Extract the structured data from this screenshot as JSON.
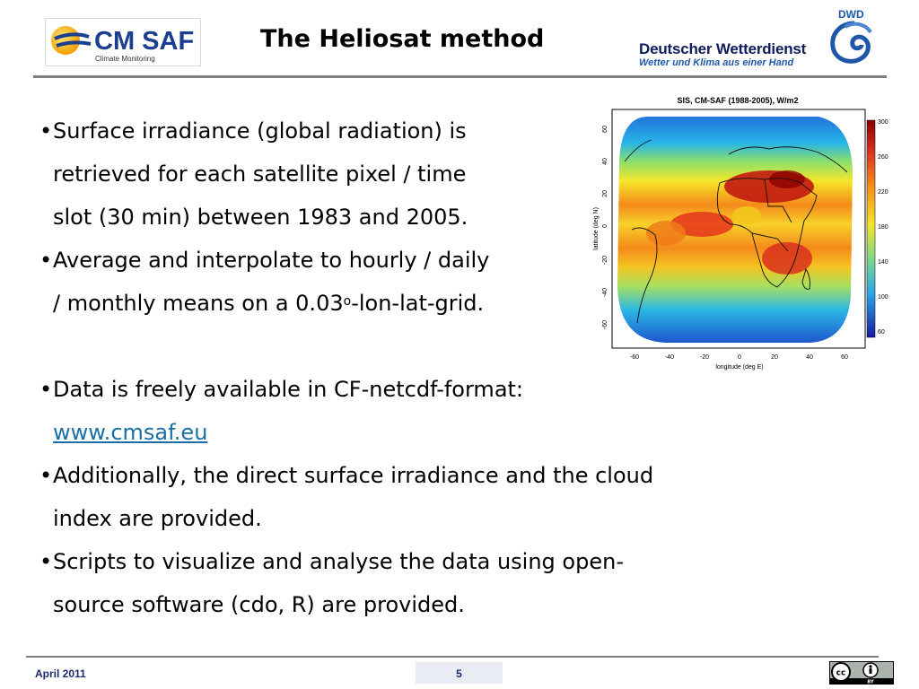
{
  "header": {
    "title": "The Heliosat method",
    "cmsaf_logo": {
      "name": "CM SAF",
      "tagline": "Climate Monitoring"
    },
    "dwd": {
      "short": "DWD",
      "name": "Deutscher Wetterdienst",
      "slogan": "Wetter und Klima aus einer Hand"
    }
  },
  "bullets": {
    "b1": {
      "l1": "Surface irradiance (global radiation) is",
      "l2": "retrieved for each satellite pixel / time",
      "l3": "slot (30 min) between 1983 and 2005."
    },
    "b2": {
      "l1": "Average and interpolate to hourly / daily",
      "l2a": "/ monthly means on a 0.03",
      "l2sup": "o",
      "l2b": "-lon-lat-grid."
    },
    "b3": {
      "l1": "Data is freely available in CF-netcdf-format:",
      "link": "www.cmsaf.eu"
    },
    "b4": {
      "l1": "Additionally, the direct surface irradiance and the cloud",
      "l2": "index are provided."
    },
    "b5": {
      "l1": "Scripts to visualize and analyse the data using open-",
      "l2": "source software (cdo, R) are provided."
    },
    "bullet_char": "•"
  },
  "map": {
    "title": "SIS, CM-SAF (1988-2005), W/m2",
    "xlabel": "longitude (deg E)",
    "ylabel": "latitude (deg N)",
    "xticks": [
      "-60",
      "-40",
      "-20",
      "0",
      "20",
      "40",
      "60"
    ],
    "yticks": [
      "60",
      "40",
      "20",
      "0",
      "-20",
      "-40",
      "-60"
    ],
    "colorbar_ticks": [
      "300",
      "260",
      "220",
      "180",
      "140",
      "100",
      "60"
    ]
  },
  "footer": {
    "date": "April 2011",
    "page": "5",
    "license": {
      "cc": "cc",
      "by": "BY"
    }
  }
}
